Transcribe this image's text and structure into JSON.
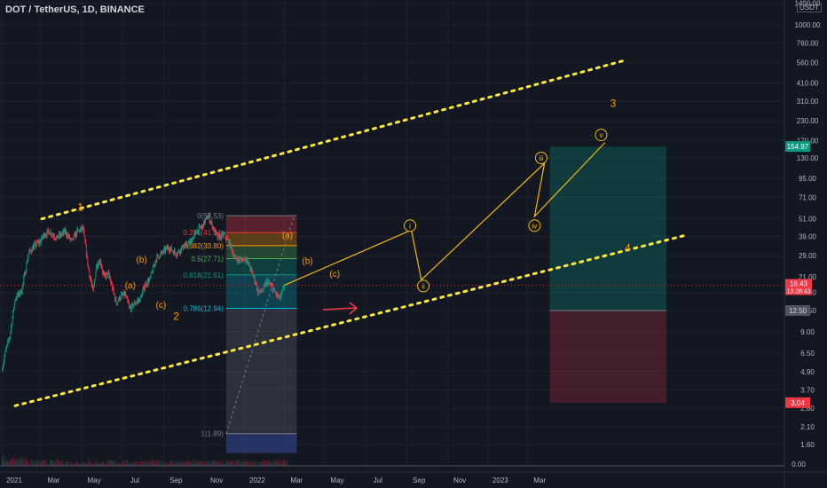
{
  "chart_data": {
    "type": "candlestick-log",
    "title": "DOT / TetherUS, 1D, BINANCE",
    "currency": "USDT",
    "x_labels": [
      {
        "label": "2021",
        "i": 0
      },
      {
        "label": "Mar",
        "i": 59
      },
      {
        "label": "May",
        "i": 120
      },
      {
        "label": "Jul",
        "i": 181
      },
      {
        "label": "Sep",
        "i": 243
      },
      {
        "label": "Nov",
        "i": 304
      },
      {
        "label": "2022",
        "i": 365
      },
      {
        "label": "Mar",
        "i": 424
      },
      {
        "label": "May",
        "i": 485
      },
      {
        "label": "Jul",
        "i": 546
      },
      {
        "label": "Sep",
        "i": 608
      },
      {
        "label": "Nov",
        "i": 669
      },
      {
        "label": "2023",
        "i": 730
      },
      {
        "label": "Mar",
        "i": 789
      }
    ],
    "y_ticks": [
      1.6,
      2.1,
      2.8,
      3.7,
      4.9,
      6.5,
      9.0,
      12.5,
      16.5,
      21.0,
      29.0,
      39.0,
      51.0,
      71.0,
      95.0,
      130.0,
      170.0,
      230.0,
      310.0,
      410.0,
      560.0,
      760.0,
      1000.0,
      1400.0
    ],
    "price_path": [
      [
        0,
        5.0
      ],
      [
        5,
        6.5
      ],
      [
        12,
        8.5
      ],
      [
        20,
        15.0
      ],
      [
        30,
        17.0
      ],
      [
        40,
        30.0
      ],
      [
        50,
        34.0
      ],
      [
        58,
        36.0
      ],
      [
        63,
        40.0
      ],
      [
        72,
        42.0
      ],
      [
        82,
        38.0
      ],
      [
        95,
        42.0
      ],
      [
        105,
        36.0
      ],
      [
        113,
        42.0
      ],
      [
        122,
        44.0
      ],
      [
        130,
        24.0
      ],
      [
        137,
        16.5
      ],
      [
        142,
        25.0
      ],
      [
        148,
        27.0
      ],
      [
        153,
        21.0
      ],
      [
        160,
        22.0
      ],
      [
        167,
        17.0
      ],
      [
        172,
        14.0
      ],
      [
        178,
        15.5
      ],
      [
        185,
        16.0
      ],
      [
        192,
        12.8
      ],
      [
        200,
        14.0
      ],
      [
        208,
        15.0
      ],
      [
        215,
        18.5
      ],
      [
        222,
        20.0
      ],
      [
        232,
        28.0
      ],
      [
        240,
        30.0
      ],
      [
        250,
        33.0
      ],
      [
        262,
        30.0
      ],
      [
        272,
        33.0
      ],
      [
        282,
        35.0
      ],
      [
        292,
        42.0
      ],
      [
        300,
        45.0
      ],
      [
        306,
        50.0
      ],
      [
        310,
        53.5
      ],
      [
        316,
        46.0
      ],
      [
        324,
        38.0
      ],
      [
        334,
        40.0
      ],
      [
        342,
        35.0
      ],
      [
        350,
        28.0
      ],
      [
        358,
        27.0
      ],
      [
        366,
        28.0
      ],
      [
        373,
        24.0
      ],
      [
        380,
        20.0
      ],
      [
        385,
        16.5
      ],
      [
        392,
        17.0
      ],
      [
        398,
        19.5
      ],
      [
        405,
        18.0
      ],
      [
        412,
        16.0
      ],
      [
        418,
        15.0
      ],
      [
        424,
        18.4
      ]
    ],
    "price_high": 53.53,
    "last_price": 18.43,
    "last_price_countdown": "13:28:43",
    "target_price": 154.97,
    "entry_price": 12.5,
    "stop_price": 3.04,
    "fib_levels": [
      {
        "label": "0(53.53)",
        "ratio": 0,
        "price": 53.53,
        "color": "#787b86"
      },
      {
        "label": "0.236(41.34)",
        "ratio": 0.236,
        "price": 41.34,
        "color": "#f23645"
      },
      {
        "label": "0.382(33.80)",
        "ratio": 0.382,
        "price": 33.8,
        "color": "#ff9800"
      },
      {
        "label": "0.5(27.71)",
        "ratio": 0.5,
        "price": 27.71,
        "color": "#4caf50"
      },
      {
        "label": "0.618(21.61)",
        "ratio": 0.618,
        "price": 21.61,
        "color": "#089981"
      },
      {
        "label": "0.786(12.94)",
        "ratio": 0.786,
        "price": 12.94,
        "color": "#00bcd4"
      },
      {
        "label": "1(1.89)",
        "ratio": 1,
        "price": 1.89,
        "color": "#787b86"
      }
    ],
    "waves_major": [
      {
        "label": "1",
        "i": 118,
        "price": 58,
        "color": "#ff9800"
      },
      {
        "label": "2",
        "i": 262,
        "price": 10.8,
        "color": "#ff9800"
      },
      {
        "label": "3",
        "i": 918,
        "price": 285,
        "color": "#ff9800"
      },
      {
        "label": "4",
        "i": 940,
        "price": 31,
        "color": "#ff9800"
      }
    ],
    "waves_minor": [
      {
        "label": "(a)",
        "i": 193,
        "price": 17.6,
        "color": "#ff9800"
      },
      {
        "label": "(b)",
        "i": 210,
        "price": 26.0,
        "color": "#ff9800"
      },
      {
        "label": "(c)",
        "i": 239,
        "price": 13.0,
        "color": "#ff9800"
      },
      {
        "label": "(a)",
        "i": 429,
        "price": 38.0,
        "color": "#ff9800"
      },
      {
        "label": "(b)",
        "i": 459,
        "price": 25.5,
        "color": "#ff9800"
      },
      {
        "label": "(c)",
        "i": 500,
        "price": 21.0,
        "color": "#ff9800"
      }
    ],
    "impulse_path": [
      [
        424,
        18.4
      ],
      [
        615,
        43
      ],
      [
        630,
        20
      ],
      [
        815,
        120
      ],
      [
        800,
        53
      ],
      [
        906,
        165
      ]
    ],
    "impulse_labels": [
      {
        "label": "i",
        "i": 613,
        "price": 46
      },
      {
        "label": "ii",
        "i": 633,
        "price": 18.2
      },
      {
        "label": "iii",
        "i": 810,
        "price": 130
      },
      {
        "label": "iv",
        "i": 800,
        "price": 46
      },
      {
        "label": "v",
        "i": 900,
        "price": 185
      }
    ],
    "channel_upper": [
      [
        60,
        51
      ],
      [
        935,
        580
      ]
    ],
    "channel_lower": [
      [
        20,
        2.9
      ],
      [
        1030,
        40
      ]
    ],
    "volume_series_len": 430
  }
}
